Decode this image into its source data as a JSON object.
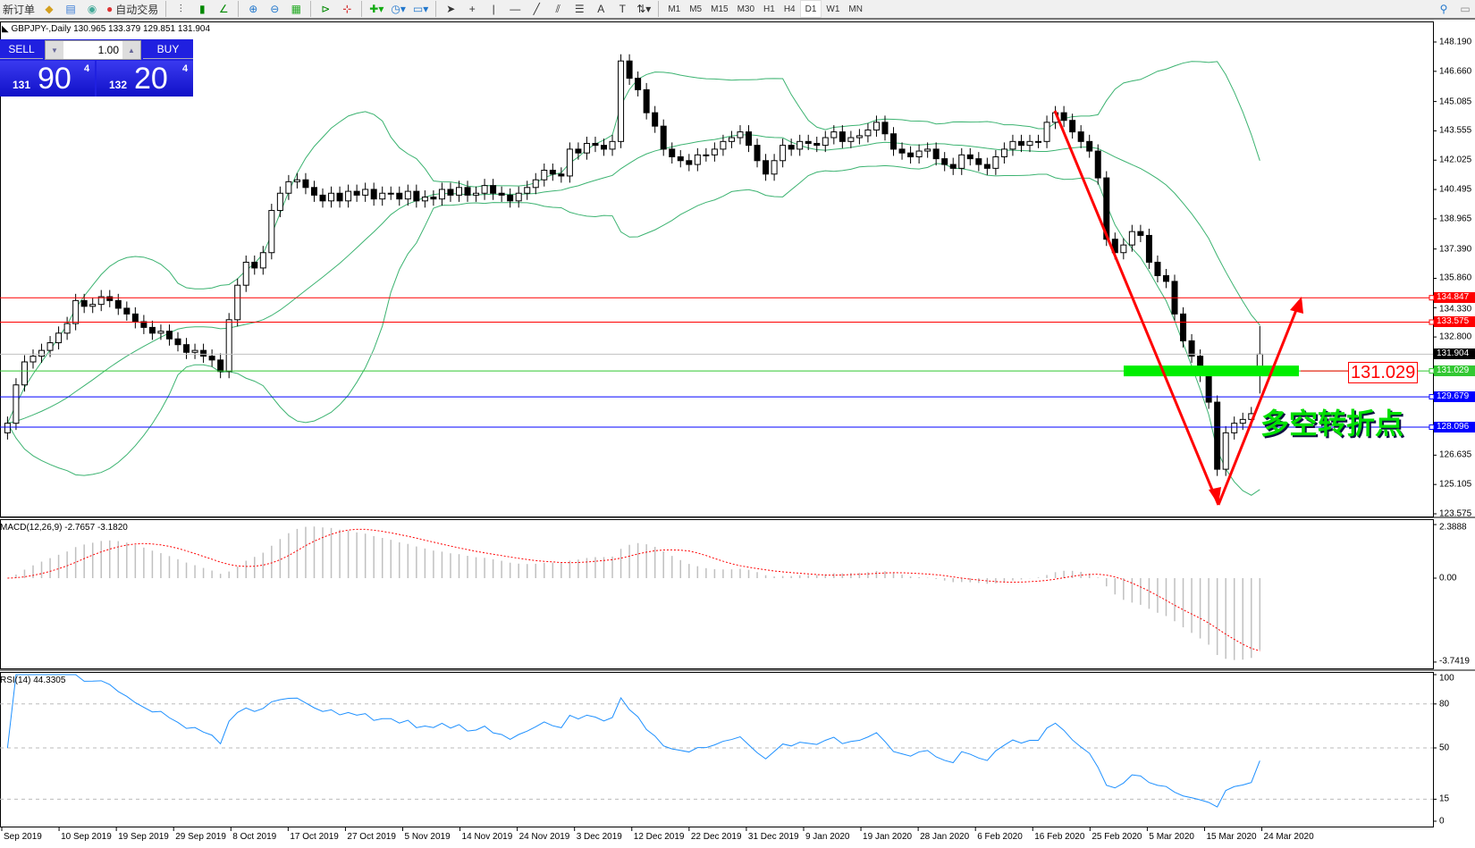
{
  "toolbar": {
    "new_order_label": "新订单",
    "auto_trading_label": "自动交易",
    "timeframes": [
      "M1",
      "M5",
      "M15",
      "M30",
      "H1",
      "H4",
      "D1",
      "W1",
      "MN"
    ],
    "active_timeframe": "D1"
  },
  "chart": {
    "header": "GBPJPY-,Daily  130.965 133.379 129.851 131.904"
  },
  "trade_panel": {
    "sell_label": "SELL",
    "buy_label": "BUY",
    "lot": "1.00",
    "sell_small": "131",
    "sell_big": "90",
    "sell_pip": "4",
    "buy_small": "132",
    "buy_big": "20",
    "buy_pip": "4"
  },
  "annotations": {
    "level_box": "131.029",
    "text": "多空转折点",
    "text_color": "#00e000",
    "arrow_color": "#ff0000"
  },
  "macd": {
    "label": "MACD(12,26,9) -2.7657 -3.1820",
    "axis": [
      "2.3888",
      "0.00",
      "-3.7419"
    ]
  },
  "rsi": {
    "label": "RSI(14) 44.3305",
    "axis": [
      "100",
      "80",
      "50",
      "15",
      "0"
    ]
  },
  "chart_data": {
    "type": "candlestick",
    "symbol": "GBPJPY-",
    "timeframe": "Daily",
    "last_bar": {
      "open": 130.965,
      "high": 133.379,
      "low": 129.851,
      "close": 131.904
    },
    "ylim": [
      123.575,
      148.19
    ],
    "y_ticks": [
      "148.190",
      "146.660",
      "145.085",
      "143.555",
      "142.025",
      "140.495",
      "138.965",
      "137.390",
      "135.860",
      "134.330",
      "132.800",
      "126.635",
      "125.105",
      "123.575"
    ],
    "x_ticks": [
      "Sep 2019",
      "10 Sep 2019",
      "19 Sep 2019",
      "29 Sep 2019",
      "8 Oct 2019",
      "17 Oct 2019",
      "27 Oct 2019",
      "5 Nov 2019",
      "14 Nov 2019",
      "24 Nov 2019",
      "3 Dec 2019",
      "12 Dec 2019",
      "22 Dec 2019",
      "31 Dec 2019",
      "9 Jan 2020",
      "19 Jan 2020",
      "28 Jan 2020",
      "6 Feb 2020",
      "16 Feb 2020",
      "25 Feb 2020",
      "5 Mar 2020",
      "15 Mar 2020",
      "24 Mar 2020"
    ],
    "close": [
      128.3,
      130.3,
      131.5,
      131.8,
      132.1,
      132.5,
      133.0,
      133.5,
      134.7,
      134.4,
      134.5,
      134.9,
      134.7,
      134.3,
      134.0,
      133.6,
      133.3,
      133.0,
      133.1,
      132.7,
      132.4,
      132.0,
      132.1,
      131.8,
      131.6,
      131.0,
      133.7,
      135.5,
      136.7,
      136.4,
      137.2,
      139.4,
      140.3,
      140.9,
      141.0,
      140.6,
      140.2,
      139.9,
      140.3,
      139.9,
      140.4,
      140.2,
      140.5,
      140.0,
      140.3,
      140.3,
      140.0,
      140.4,
      139.9,
      140.1,
      140.0,
      140.5,
      140.2,
      140.6,
      140.2,
      140.3,
      140.7,
      140.3,
      140.2,
      139.9,
      140.3,
      140.6,
      141.0,
      141.5,
      141.3,
      141.2,
      142.6,
      142.4,
      142.9,
      142.8,
      142.6,
      143.0,
      147.2,
      146.3,
      145.7,
      144.5,
      143.8,
      142.6,
      142.2,
      142.0,
      141.8,
      142.3,
      142.3,
      142.6,
      143.0,
      143.2,
      143.5,
      142.8,
      142.0,
      141.3,
      142.0,
      142.8,
      142.6,
      143.0,
      142.9,
      142.8,
      143.2,
      143.5,
      143.0,
      143.2,
      143.3,
      143.6,
      144.0,
      143.4,
      142.6,
      142.4,
      142.2,
      142.5,
      142.6,
      142.1,
      141.8,
      141.6,
      142.3,
      142.1,
      141.8,
      141.6,
      142.2,
      142.6,
      143.0,
      142.8,
      143.0,
      143.0,
      144.0,
      144.5,
      144.1,
      143.5,
      143.0,
      142.5,
      141.1,
      137.9,
      137.2,
      137.6,
      138.3,
      138.1,
      136.7,
      136.0,
      135.7,
      134.0,
      132.6,
      131.8,
      130.8,
      129.4,
      125.9,
      127.8,
      128.3,
      128.5,
      128.8,
      131.9
    ],
    "hlines": [
      {
        "price": "134.847",
        "color": "#ff0000"
      },
      {
        "price": "133.575",
        "color": "#ff0000"
      },
      {
        "price": "131.904",
        "color": "#000000",
        "line": "#c0c0c0"
      },
      {
        "price": "131.029",
        "color": "#32c832"
      },
      {
        "price": "129.679",
        "color": "#0000ff"
      },
      {
        "price": "128.096",
        "color": "#0000ff"
      }
    ],
    "indicators": [
      "Bollinger Bands (green)",
      "MACD(12,26,9)",
      "RSI(14)"
    ]
  }
}
